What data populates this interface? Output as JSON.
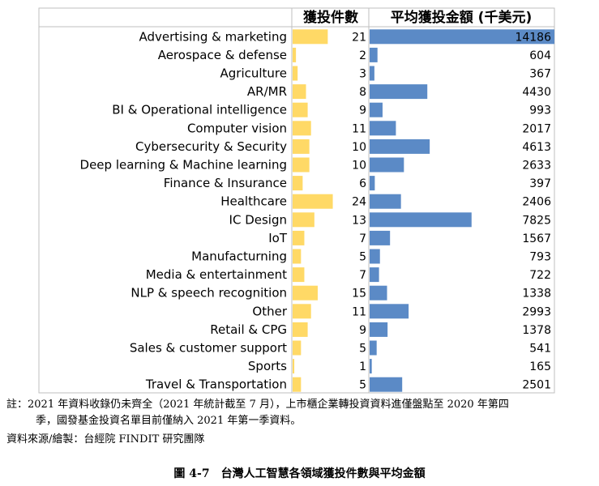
{
  "chart_data": {
    "type": "bar",
    "categories": [
      "Advertising & marketing",
      "Aerospace & defense",
      "Agriculture",
      "AR/MR",
      "BI & Operational intelligence",
      "Computer vision",
      "Cybersecurity & Security",
      "Deep learning & Machine learning",
      "Finance & Insurance",
      "Healthcare",
      "IC Design",
      "IoT",
      "Manufacturning",
      "Media & entertainment",
      "NLP & speech recognition",
      "Other",
      "Retail & CPG",
      "Sales & customer support",
      "Sports",
      "Travel & Transportation"
    ],
    "series": [
      {
        "name": "獲投件數",
        "color": "#ffd966",
        "values": [
          21,
          2,
          3,
          8,
          9,
          11,
          10,
          10,
          6,
          24,
          13,
          7,
          5,
          7,
          15,
          11,
          9,
          5,
          1,
          5
        ],
        "xlim": [
          0,
          46
        ]
      },
      {
        "name": "平均獲投金額 (千美元)",
        "color": "#5b8ac6",
        "values": [
          14186,
          604,
          367,
          4430,
          993,
          2017,
          4613,
          2633,
          397,
          2406,
          7825,
          1567,
          793,
          722,
          1338,
          2993,
          1378,
          541,
          165,
          2501
        ],
        "xlim": [
          0,
          14186
        ]
      }
    ]
  },
  "notes": {
    "line1": "註：2021 年資料收錄仍未齊全（2021 年統計截至 7 月），上市櫃企業轉投資資料進僅盤點至 2020 年第四",
    "line2": "季，國發基金投資名單目前僅納入 2021 年第一季資料。",
    "source": "資料來源/繪製：台經院 FINDIT 研究團隊"
  },
  "caption": "圖 4-7　台灣人工智慧各領域獲投件數與平均金額"
}
